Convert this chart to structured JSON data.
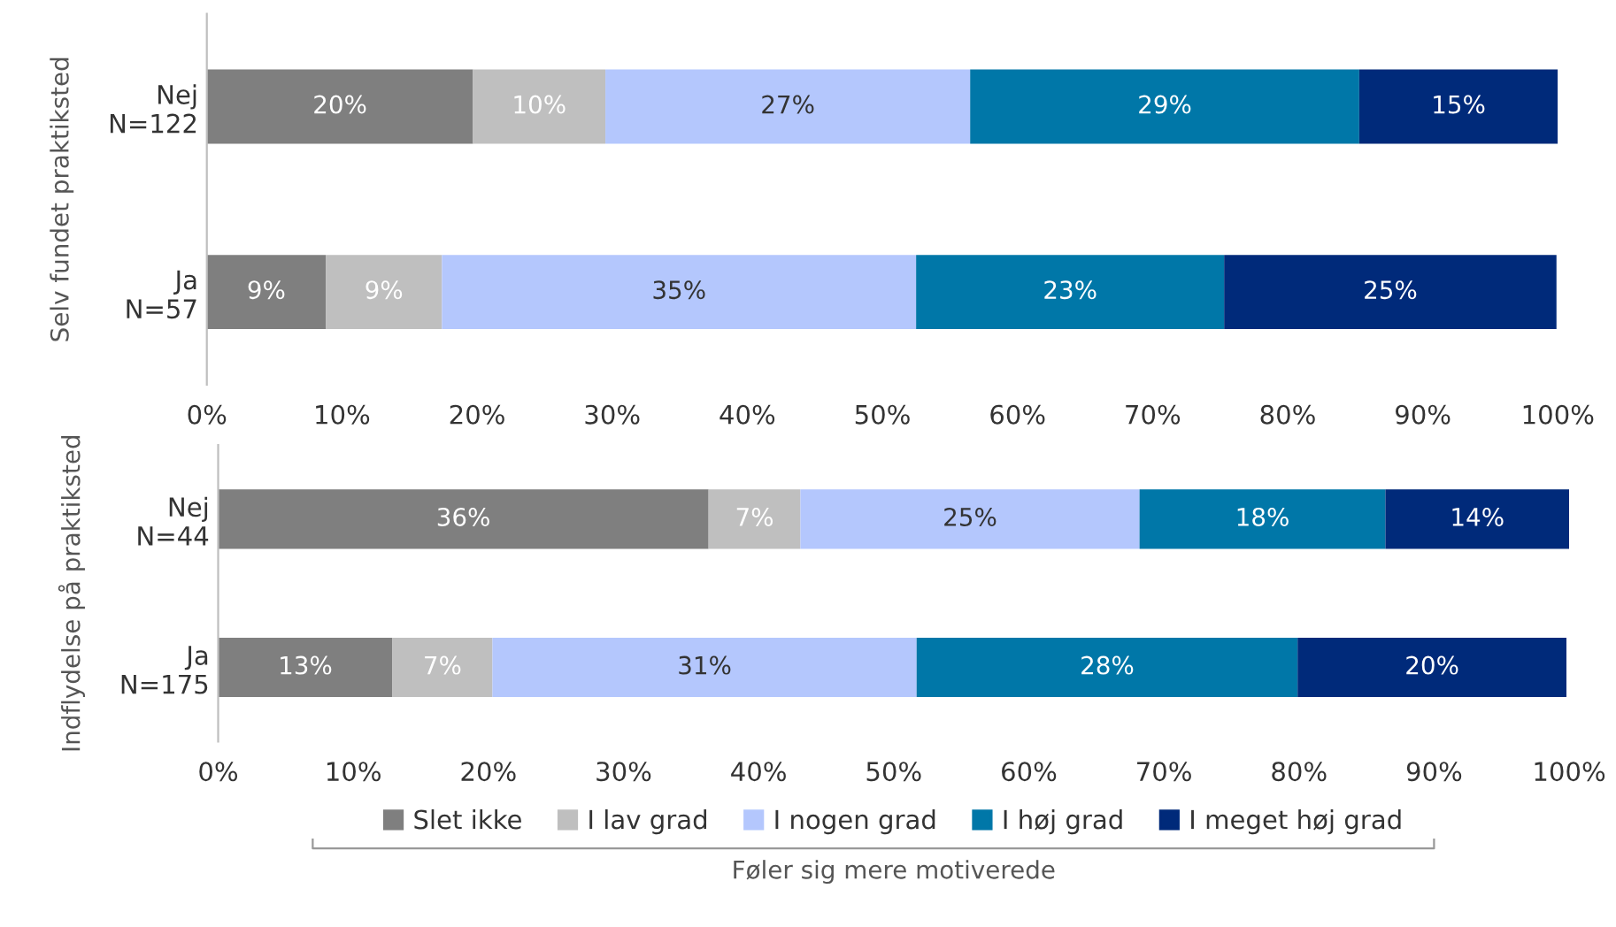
{
  "chart_data": [
    {
      "type": "bar",
      "orientation": "horizontal",
      "stacked": true,
      "ylabel": "Selv fundet praktiksted",
      "categories": [
        "Nej\nN=122",
        "Ja\nN=57"
      ],
      "series": [
        {
          "color": "#7f7f7f",
          "values": [
            19.7,
            8.8
          ],
          "value_labels": [
            "20%",
            "9%"
          ]
        },
        {
          "color": "#bfbfbf",
          "values": [
            9.8,
            8.6
          ],
          "value_labels": [
            "10%",
            "9%"
          ]
        },
        {
          "color": "#b4c7fd",
          "values": [
            27.0,
            35.1
          ],
          "value_labels": [
            "27%",
            "35%"
          ]
        },
        {
          "color": "#0077a8",
          "values": [
            28.8,
            22.8
          ],
          "value_labels": [
            "29%",
            "23%"
          ]
        },
        {
          "color": "#002a7a",
          "values": [
            14.7,
            24.6
          ],
          "value_labels": [
            "15%",
            "25%"
          ]
        }
      ],
      "xlim": [
        0,
        100
      ],
      "xticks": [
        {
          "value": 0,
          "label": "0%"
        },
        {
          "value": 10,
          "label": "10%"
        },
        {
          "value": 20,
          "label": "20%"
        },
        {
          "value": 30,
          "label": "30%"
        },
        {
          "value": 40,
          "label": "40%"
        },
        {
          "value": 50,
          "label": "50%"
        },
        {
          "value": 60,
          "label": "60%"
        },
        {
          "value": 70,
          "label": "70%"
        },
        {
          "value": 80,
          "label": "80%"
        },
        {
          "value": 90,
          "label": "90%"
        },
        {
          "value": 100,
          "label": "100%"
        }
      ],
      "grid": false
    },
    {
      "type": "bar",
      "orientation": "horizontal",
      "stacked": true,
      "ylabel": "Indflydelse på praktiksted",
      "xlabel": "Føler sig mere motiverede",
      "categories": [
        "Nej\nN=44",
        "Ja\nN=175"
      ],
      "series": [
        {
          "name": "Slet ikke",
          "color": "#7f7f7f",
          "values": [
            36.3,
            12.9
          ],
          "value_labels": [
            "36%",
            "13%"
          ]
        },
        {
          "name": "I lav grad",
          "color": "#bfbfbf",
          "values": [
            6.8,
            7.4
          ],
          "value_labels": [
            "7%",
            "7%"
          ]
        },
        {
          "name": "I nogen grad",
          "color": "#b4c7fd",
          "values": [
            25.1,
            31.4
          ],
          "value_labels": [
            "25%",
            "31%"
          ]
        },
        {
          "name": "I høj grad",
          "color": "#0077a8",
          "values": [
            18.2,
            28.2
          ],
          "value_labels": [
            "18%",
            "28%"
          ]
        },
        {
          "name": "I meget høj grad",
          "color": "#002a7a",
          "values": [
            13.6,
            19.9
          ],
          "value_labels": [
            "14%",
            "20%"
          ]
        }
      ],
      "xlim": [
        0,
        100
      ],
      "xticks": [
        {
          "value": 0,
          "label": "0%"
        },
        {
          "value": 10,
          "label": "10%"
        },
        {
          "value": 20,
          "label": "20%"
        },
        {
          "value": 30,
          "label": "30%"
        },
        {
          "value": 40,
          "label": "40%"
        },
        {
          "value": 50,
          "label": "50%"
        },
        {
          "value": 60,
          "label": "60%"
        },
        {
          "value": 70,
          "label": "70%"
        },
        {
          "value": 80,
          "label": "80%"
        },
        {
          "value": 90,
          "label": "90%"
        },
        {
          "value": 100,
          "label": "100%"
        }
      ],
      "grid": false,
      "legend": "bottom"
    }
  ]
}
